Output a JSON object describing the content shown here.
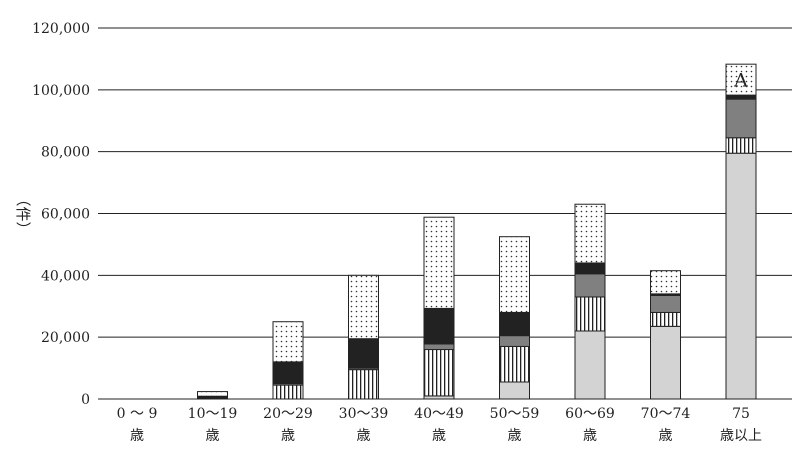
{
  "chart_data": {
    "type": "bar",
    "stacked": true,
    "title": "",
    "xlabel": "",
    "ylabel": "（件）",
    "ylim": [
      0,
      120000
    ],
    "yticks": [
      0,
      20000,
      40000,
      60000,
      80000,
      100000,
      120000
    ],
    "ytick_labels": [
      "0",
      "20,000",
      "40,000",
      "60,000",
      "80,000",
      "100,000",
      "120,000"
    ],
    "grid": true,
    "categories": [
      {
        "line1": "0 ～ 9",
        "line2": "歳"
      },
      {
        "line1": "10～19",
        "line2": "歳"
      },
      {
        "line1": "20～29",
        "line2": "歳"
      },
      {
        "line1": "30～39",
        "line2": "歳"
      },
      {
        "line1": "40～49",
        "line2": "歳"
      },
      {
        "line1": "50～59",
        "line2": "歳"
      },
      {
        "line1": "60～69",
        "line2": "歳"
      },
      {
        "line1": "70～74",
        "line2": "歳"
      },
      {
        "line1": "75",
        "line2": "歳以上"
      }
    ],
    "series": [
      {
        "fill": "#d3d3d3",
        "pattern": "solid-light-gray",
        "values": [
          0,
          0,
          0,
          0,
          1000,
          5500,
          22000,
          23500,
          79500
        ]
      },
      {
        "fill": "#ffffff",
        "pattern": "vertical-stripes",
        "values": [
          0,
          300,
          4500,
          9500,
          15000,
          11500,
          11000,
          4500,
          5000
        ]
      },
      {
        "fill": "#808080",
        "pattern": "solid-mid-gray",
        "values": [
          0,
          100,
          500,
          500,
          1800,
          3500,
          7500,
          5500,
          12500
        ]
      },
      {
        "fill": "#222222",
        "pattern": "solid-black",
        "values": [
          0,
          500,
          7000,
          9500,
          11500,
          7500,
          3500,
          500,
          1300
        ]
      },
      {
        "fill": "#ffffff",
        "pattern": "dots",
        "values": [
          0,
          1500,
          13000,
          20500,
          29500,
          24500,
          19000,
          7500,
          10000
        ]
      }
    ],
    "annotations": [
      {
        "category_index": 8,
        "series_index": 4,
        "text": "A"
      }
    ]
  }
}
